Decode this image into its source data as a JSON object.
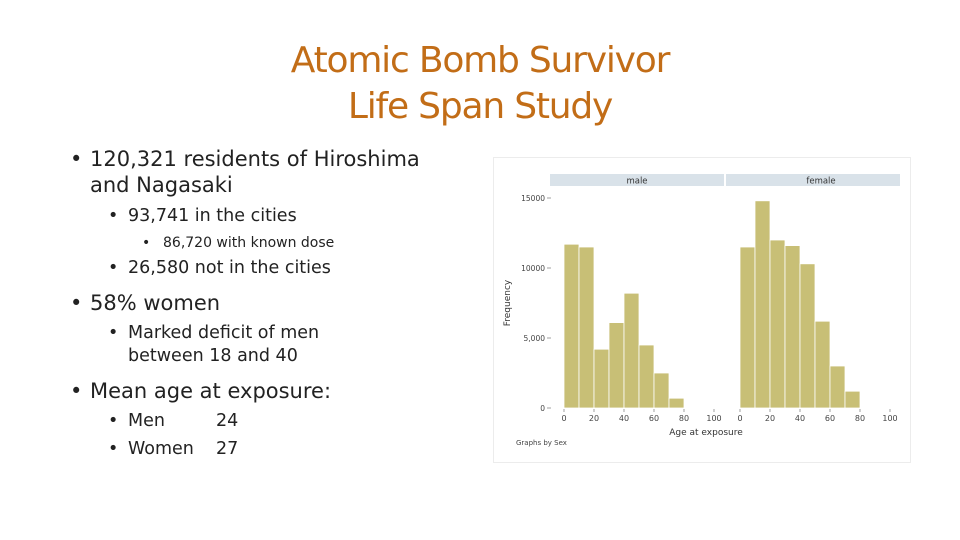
{
  "slide": {
    "title_line1": "Atomic Bomb Survivor",
    "title_line2": "Life Span Study",
    "bullets": {
      "b1_line1": "120,321 residents of Hiroshima",
      "b1_line2": "and Nagasaki",
      "b1_1": "93,741 in the cities",
      "b1_1_1": "86,720 with known dose",
      "b1_2": "26,580 not in the cities",
      "b2": "58% women",
      "b2_1_line1": "Marked deficit of men",
      "b2_1_line2": "between 18 and 40",
      "b3": "Mean age at exposure:",
      "b3_1_label": "Men",
      "b3_1_value": "24",
      "b3_2_label": "Women",
      "b3_2_value": "27"
    },
    "title_color": "#c26d17"
  },
  "chart_data": {
    "type": "bar",
    "panels": [
      {
        "name": "male",
        "bin_edges": [
          0,
          10,
          20,
          30,
          40,
          50,
          60,
          70,
          80,
          90,
          100
        ],
        "values": [
          11700,
          11500,
          4200,
          6100,
          8200,
          4500,
          2500,
          700,
          0,
          0
        ]
      },
      {
        "name": "female",
        "bin_edges": [
          0,
          10,
          20,
          30,
          40,
          50,
          60,
          70,
          80,
          90,
          100
        ],
        "values": [
          11500,
          14800,
          12000,
          11600,
          10300,
          6200,
          3000,
          1200,
          0,
          0
        ]
      }
    ],
    "xlabel": "Age at exposure",
    "ylabel": "Frequency",
    "note": "Graphs by Sex",
    "ylim": [
      0,
      15000
    ],
    "yticks": [
      0,
      5000,
      10000,
      15000
    ],
    "ytick_labels": [
      "0",
      "5,000",
      "10000",
      "15000"
    ],
    "xticks": [
      0,
      20,
      40,
      60,
      80,
      100
    ],
    "xtick_labels": [
      "0",
      "20",
      "40",
      "60",
      "80",
      "100"
    ],
    "bar_color": "#c8bf76",
    "strip_color": "#d9e2e9",
    "grid": false
  }
}
